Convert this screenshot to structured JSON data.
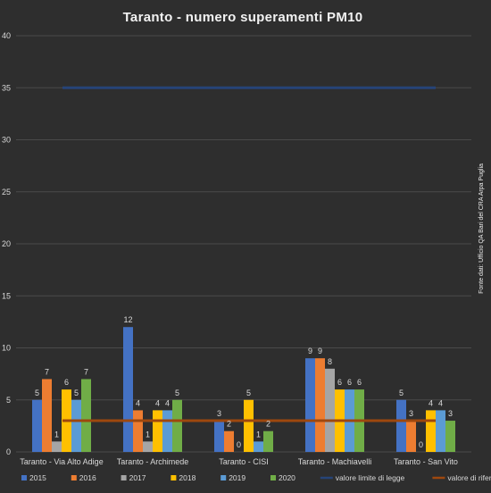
{
  "chart_data": {
    "type": "bar",
    "title": "Taranto  - numero superamenti  PM10",
    "source_note": "Fonte dati: Ufficio QA Bari del CRA Arpa Puglia",
    "xlabel": "",
    "ylabel": "",
    "ylim": [
      0,
      40
    ],
    "yticks": [
      0,
      5,
      10,
      15,
      20,
      25,
      30,
      35,
      40
    ],
    "grid": true,
    "legend_position": "bottom",
    "categories": [
      "Taranto - Via Alto Adige",
      "Taranto -  Archimede",
      "Taranto -  CISI",
      "Taranto -  Machiavelli",
      "Taranto - San Vito"
    ],
    "series": [
      {
        "name": "2015",
        "color": "#4472c4",
        "values": [
          5,
          12,
          3,
          9,
          5
        ]
      },
      {
        "name": "2016",
        "color": "#ed7d31",
        "values": [
          7,
          4,
          2,
          9,
          3
        ]
      },
      {
        "name": "2017",
        "color": "#a5a5a5",
        "values": [
          1,
          1,
          0,
          8,
          0
        ]
      },
      {
        "name": "2018",
        "color": "#ffc000",
        "values": [
          6,
          4,
          5,
          6,
          4
        ]
      },
      {
        "name": "2019",
        "color": "#5b9bd5",
        "values": [
          5,
          4,
          1,
          6,
          4
        ]
      },
      {
        "name": "2020",
        "color": "#70ad47",
        "values": [
          7,
          5,
          2,
          6,
          3
        ]
      }
    ],
    "reference_lines": [
      {
        "name": "valore limite di legge",
        "color": "#264478",
        "value": 35
      },
      {
        "name": "valore di riferimento OMS",
        "color": "#9e480e",
        "value": 3
      }
    ]
  }
}
